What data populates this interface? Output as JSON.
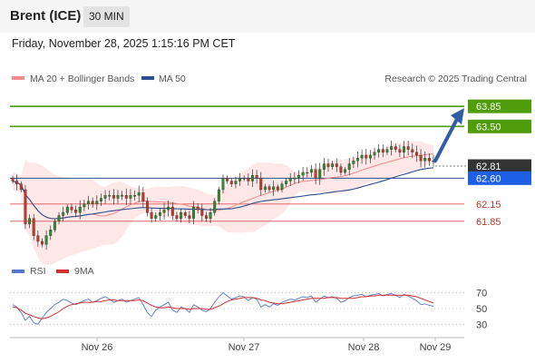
{
  "header": {
    "instrument": "Brent (ICE)",
    "timeframe": "30 MIN"
  },
  "datetime": "Friday, November 28, 2025 1:15:16 PM CET",
  "legend": {
    "ma20": "MA 20 + Bollinger Bands",
    "ma50": "MA 50",
    "ma20_color": "#f28a8a",
    "ma50_color": "#2e4f8f"
  },
  "source": "Research © 2025 Trading Central",
  "colors": {
    "target": "#4f9d0a",
    "current": "#1f5fe6",
    "support": "#e05252",
    "last": "#333333",
    "arrow": "#2f5fa3",
    "up": "#2e8b2e",
    "down": "#c0392b",
    "band": "#fde3e3"
  },
  "chart_data": {
    "type": "candlestick",
    "y_range": [
      61.2,
      64.2
    ],
    "x_labels": [
      "Nov 26",
      "Nov 27",
      "Nov 28",
      "Nov 29"
    ],
    "levels": [
      {
        "value": 63.85,
        "label": "63.85",
        "kind": "target"
      },
      {
        "value": 63.5,
        "label": "63.50",
        "kind": "target"
      },
      {
        "value": 62.81,
        "label": "62.81",
        "kind": "last"
      },
      {
        "value": 62.6,
        "label": "62.60",
        "kind": "current"
      },
      {
        "value": 62.15,
        "label": "62.15",
        "kind": "support"
      },
      {
        "value": 61.85,
        "label": "61.85",
        "kind": "support"
      }
    ],
    "closes": [
      62.55,
      62.5,
      62.4,
      61.8,
      61.9,
      61.6,
      61.5,
      61.45,
      61.6,
      61.7,
      61.85,
      61.95,
      62.0,
      62.1,
      62.05,
      62.0,
      62.1,
      62.15,
      62.2,
      62.15,
      62.2,
      62.25,
      62.3,
      62.3,
      62.25,
      62.3,
      62.3,
      62.25,
      62.3,
      62.3,
      62.35,
      62.2,
      62.0,
      61.9,
      61.95,
      62.0,
      62.05,
      62.1,
      61.95,
      61.9,
      62.0,
      61.95,
      61.9,
      62.1,
      62.05,
      61.95,
      61.9,
      62.0,
      62.2,
      62.4,
      62.6,
      62.55,
      62.5,
      62.55,
      62.6,
      62.6,
      62.55,
      62.65,
      62.6,
      62.4,
      62.45,
      62.4,
      62.45,
      62.4,
      62.5,
      62.55,
      62.6,
      62.6,
      62.65,
      62.7,
      62.7,
      62.75,
      62.6,
      62.75,
      62.85,
      62.8,
      62.85,
      62.8,
      62.7,
      62.75,
      62.85,
      62.9,
      62.95,
      63.0,
      62.95,
      63.0,
      63.05,
      63.1,
      63.05,
      63.1,
      63.15,
      63.1,
      63.05,
      63.15,
      63.1,
      63.05,
      63.0,
      62.9,
      62.95,
      62.9,
      62.9
    ],
    "rsi": {
      "ticks": [
        70,
        50,
        30
      ],
      "legend_rsi": "RSI",
      "legend_ma": "9MA",
      "rsi_color": "#5577cc",
      "ma_color": "#d32f2f",
      "values": [
        55,
        52,
        45,
        35,
        40,
        32,
        30,
        38,
        45,
        50,
        55,
        58,
        62,
        60,
        57,
        55,
        58,
        60,
        62,
        58,
        60,
        63,
        65,
        62,
        58,
        60,
        62,
        58,
        60,
        62,
        64,
        55,
        45,
        40,
        48,
        52,
        55,
        58,
        48,
        45,
        52,
        50,
        45,
        55,
        52,
        48,
        46,
        50,
        58,
        65,
        70,
        66,
        62,
        64,
        66,
        65,
        60,
        64,
        62,
        52,
        55,
        52,
        56,
        54,
        58,
        60,
        62,
        61,
        63,
        65,
        64,
        66,
        58,
        62,
        66,
        64,
        65,
        63,
        58,
        60,
        64,
        66,
        67,
        68,
        65,
        67,
        68,
        69,
        66,
        68,
        69,
        67,
        64,
        68,
        66,
        63,
        60,
        55,
        56,
        54,
        53
      ],
      "ma_values": [
        52,
        51,
        48,
        44,
        42,
        40,
        38,
        37,
        38,
        40,
        43,
        46,
        50,
        53,
        55,
        56,
        57,
        58,
        58,
        58,
        59,
        59,
        60,
        61,
        61,
        60,
        60,
        60,
        60,
        60,
        61,
        60,
        57,
        54,
        52,
        51,
        51,
        52,
        51,
        50,
        50,
        50,
        49,
        50,
        50,
        50,
        49,
        49,
        51,
        53,
        56,
        59,
        61,
        62,
        63,
        64,
        64,
        64,
        63,
        61,
        60,
        58,
        57,
        56,
        56,
        57,
        58,
        59,
        60,
        61,
        62,
        63,
        63,
        63,
        63,
        64,
        64,
        64,
        63,
        63,
        63,
        63,
        64,
        65,
        65,
        66,
        66,
        67,
        67,
        67,
        67,
        67,
        67,
        67,
        67,
        66,
        65,
        63,
        61,
        59,
        57
      ]
    }
  }
}
